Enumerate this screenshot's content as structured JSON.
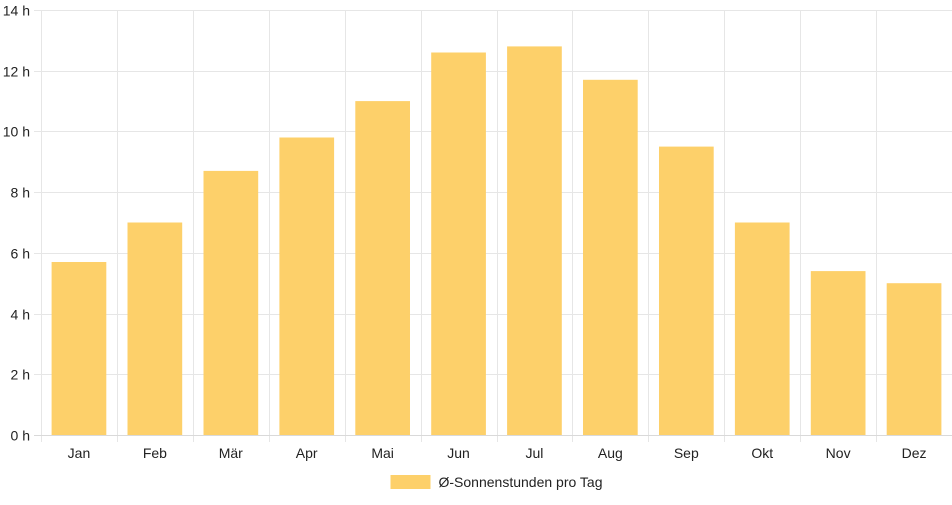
{
  "chart_data": {
    "type": "bar",
    "categories": [
      "Jan",
      "Feb",
      "Mär",
      "Apr",
      "Mai",
      "Jun",
      "Jul",
      "Aug",
      "Sep",
      "Okt",
      "Nov",
      "Dez"
    ],
    "series": [
      {
        "name": "Ø-Sonnenstunden pro Tag",
        "values": [
          5.7,
          7.0,
          8.7,
          9.8,
          11.0,
          12.6,
          12.8,
          11.7,
          9.5,
          7.0,
          5.4,
          5.0
        ],
        "color": "#FDD06A"
      }
    ],
    "ylim": [
      0,
      14
    ],
    "y_ticks": [
      0,
      2,
      4,
      6,
      8,
      10,
      12,
      14
    ],
    "y_tick_suffix": " h",
    "grid": true,
    "legend_position": "bottom"
  }
}
